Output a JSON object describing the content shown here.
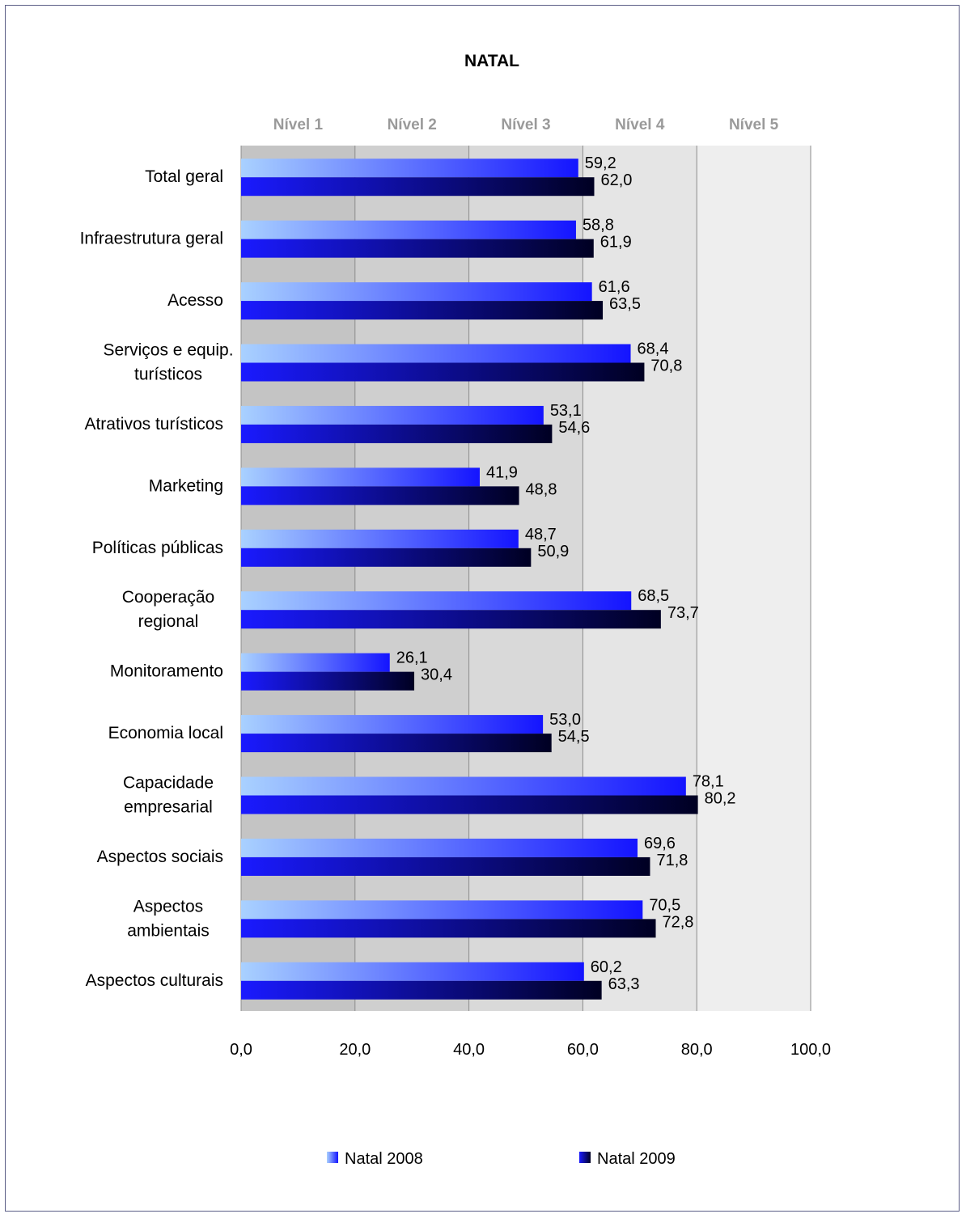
{
  "chart_data": {
    "type": "bar",
    "orientation": "horizontal",
    "title": "NATAL",
    "levels": [
      "Nível 1",
      "Nível 2",
      "Nível 3",
      "Nível 4",
      "Nível 5"
    ],
    "level_colors": [
      "#c4c4c4",
      "#cfcfcf",
      "#d9d9d9",
      "#e5e5e5",
      "#eeeeee"
    ],
    "categories": [
      [
        "Total geral"
      ],
      [
        "Infraestrutura geral"
      ],
      [
        "Acesso"
      ],
      [
        "Serviços e equip.",
        "turísticos"
      ],
      [
        "Atrativos turísticos"
      ],
      [
        "Marketing"
      ],
      [
        "Políticas públicas"
      ],
      [
        "Cooperação",
        "regional"
      ],
      [
        "Monitoramento"
      ],
      [
        "Economia local"
      ],
      [
        "Capacidade",
        "empresarial"
      ],
      [
        "Aspectos sociais"
      ],
      [
        "Aspectos",
        "ambientais"
      ],
      [
        "Aspectos culturais"
      ]
    ],
    "series": [
      {
        "name": "Natal 2008",
        "color_start": "#a9d1ff",
        "color_end": "#1414ff",
        "values": [
          59.2,
          58.8,
          61.6,
          68.4,
          53.1,
          41.9,
          48.7,
          68.5,
          26.1,
          53.0,
          78.1,
          69.6,
          70.5,
          60.2
        ],
        "labels": [
          "59,2",
          "58,8",
          "61,6",
          "68,4",
          "53,1",
          "41,9",
          "48,7",
          "68,5",
          "26,1",
          "53,0",
          "78,1",
          "69,6",
          "70,5",
          "60,2"
        ]
      },
      {
        "name": "Natal 2009",
        "color_start": "#1a1aff",
        "color_end": "#000022",
        "values": [
          62.0,
          61.9,
          63.5,
          70.8,
          54.6,
          48.8,
          50.9,
          73.7,
          30.4,
          54.5,
          80.2,
          71.8,
          72.8,
          63.3
        ],
        "labels": [
          "62,0",
          "61,9",
          "63,5",
          "70,8",
          "54,6",
          "48,8",
          "50,9",
          "73,7",
          "30,4",
          "54,5",
          "80,2",
          "71,8",
          "72,8",
          "63,3"
        ]
      }
    ],
    "xlim": [
      0,
      100
    ],
    "xticks": [
      0,
      20,
      40,
      60,
      80,
      100
    ],
    "xtick_labels": [
      "0,0",
      "20,0",
      "40,0",
      "60,0",
      "80,0",
      "100,0"
    ],
    "grid": true,
    "legend_position": "bottom"
  }
}
